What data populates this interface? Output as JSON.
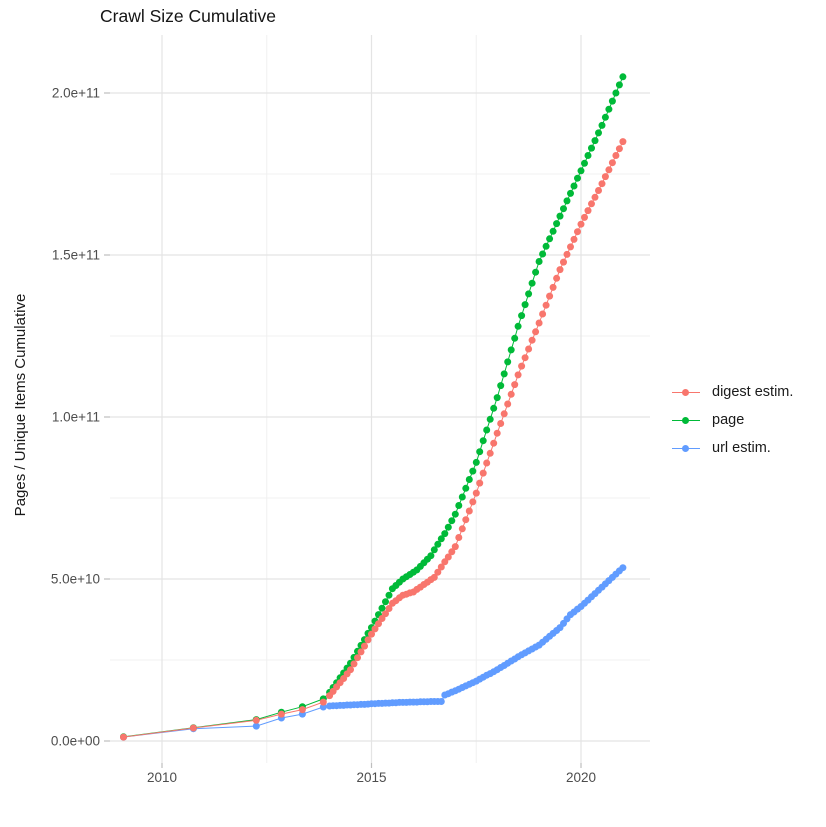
{
  "chart_data": {
    "type": "scatter",
    "title": "Crawl Size Cumulative",
    "xlabel": "",
    "ylabel": "Pages / Unique Items Cumulative",
    "value_unit": "1e10",
    "xlim": [
      2008.76,
      2021.65
    ],
    "ylim_e10": [
      -0.68,
      21.79
    ],
    "grid": "on",
    "x_ticks": [
      {
        "label": "2010",
        "value": 2010
      },
      {
        "label": "2015",
        "value": 2015
      },
      {
        "label": "2020",
        "value": 2020
      }
    ],
    "x_minor_ticks": [
      2012.5,
      2017.5
    ],
    "y_ticks": [
      {
        "label": "0.0e+00",
        "value_e10": 0
      },
      {
        "label": "5.0e+10",
        "value_e10": 5
      },
      {
        "label": "1.0e+11",
        "value_e10": 10
      },
      {
        "label": "1.5e+11",
        "value_e10": 15
      },
      {
        "label": "2.0e+11",
        "value_e10": 20
      }
    ],
    "y_minor_ticks_e10": [
      2.5,
      7.5,
      12.5,
      17.5
    ],
    "legend": {
      "position": "right",
      "entries": [
        {
          "label": "digest estim.",
          "color": "#F8766D"
        },
        {
          "label": "page",
          "color": "#00BA38"
        },
        {
          "label": "url estim.",
          "color": "#619CFF"
        }
      ]
    },
    "series": [
      {
        "name": "digest estim.",
        "color": "#F8766D",
        "points": [
          [
            2009.08,
            0.12
          ],
          [
            2010.75,
            0.4
          ],
          [
            2012.25,
            0.64
          ],
          [
            2012.85,
            0.83
          ],
          [
            2013.35,
            0.97
          ],
          [
            2013.85,
            1.2
          ],
          [
            2014.0,
            1.4
          ],
          [
            2014.083,
            1.53
          ],
          [
            2014.167,
            1.67
          ],
          [
            2014.25,
            1.8
          ],
          [
            2014.333,
            1.93
          ],
          [
            2014.417,
            2.07
          ],
          [
            2014.5,
            2.2
          ],
          [
            2014.583,
            2.38
          ],
          [
            2014.667,
            2.57
          ],
          [
            2014.75,
            2.75
          ],
          [
            2014.833,
            2.93
          ],
          [
            2014.917,
            3.12
          ],
          [
            2015.0,
            3.3
          ],
          [
            2015.083,
            3.46
          ],
          [
            2015.167,
            3.62
          ],
          [
            2015.25,
            3.78
          ],
          [
            2015.333,
            3.93
          ],
          [
            2015.417,
            4.09
          ],
          [
            2015.5,
            4.25
          ],
          [
            2015.583,
            4.33
          ],
          [
            2015.667,
            4.42
          ],
          [
            2015.75,
            4.5
          ],
          [
            2015.833,
            4.53
          ],
          [
            2015.917,
            4.57
          ],
          [
            2016.0,
            4.6
          ],
          [
            2016.083,
            4.68
          ],
          [
            2016.167,
            4.75
          ],
          [
            2016.25,
            4.83
          ],
          [
            2016.333,
            4.9
          ],
          [
            2016.417,
            4.98
          ],
          [
            2016.5,
            5.05
          ],
          [
            2016.583,
            5.21
          ],
          [
            2016.667,
            5.37
          ],
          [
            2016.75,
            5.53
          ],
          [
            2016.833,
            5.68
          ],
          [
            2016.917,
            5.84
          ],
          [
            2017.0,
            6.0
          ],
          [
            2017.083,
            6.28
          ],
          [
            2017.167,
            6.55
          ],
          [
            2017.25,
            6.83
          ],
          [
            2017.333,
            7.1
          ],
          [
            2017.417,
            7.38
          ],
          [
            2017.5,
            7.65
          ],
          [
            2017.583,
            7.96
          ],
          [
            2017.667,
            8.27
          ],
          [
            2017.75,
            8.58
          ],
          [
            2017.833,
            8.88
          ],
          [
            2017.917,
            9.19
          ],
          [
            2018.0,
            9.5
          ],
          [
            2018.083,
            9.8
          ],
          [
            2018.167,
            10.1
          ],
          [
            2018.25,
            10.4
          ],
          [
            2018.333,
            10.7
          ],
          [
            2018.417,
            11.0
          ],
          [
            2018.5,
            11.3
          ],
          [
            2018.583,
            11.57
          ],
          [
            2018.667,
            11.83
          ],
          [
            2018.75,
            12.1
          ],
          [
            2018.833,
            12.37
          ],
          [
            2018.917,
            12.63
          ],
          [
            2019.0,
            12.9
          ],
          [
            2019.083,
            13.18
          ],
          [
            2019.167,
            13.45
          ],
          [
            2019.25,
            13.73
          ],
          [
            2019.333,
            14.0
          ],
          [
            2019.417,
            14.28
          ],
          [
            2019.5,
            14.55
          ],
          [
            2019.583,
            14.78
          ],
          [
            2019.667,
            15.02
          ],
          [
            2019.75,
            15.25
          ],
          [
            2019.833,
            15.48
          ],
          [
            2019.917,
            15.72
          ],
          [
            2020.0,
            15.95
          ],
          [
            2020.083,
            16.16
          ],
          [
            2020.167,
            16.37
          ],
          [
            2020.25,
            16.58
          ],
          [
            2020.333,
            16.78
          ],
          [
            2020.417,
            16.99
          ],
          [
            2020.5,
            17.2
          ],
          [
            2020.583,
            17.42
          ],
          [
            2020.667,
            17.63
          ],
          [
            2020.75,
            17.85
          ],
          [
            2020.833,
            18.07
          ],
          [
            2020.917,
            18.28
          ],
          [
            2021.0,
            18.5
          ]
        ]
      },
      {
        "name": "page",
        "color": "#00BA38",
        "points": [
          [
            2009.08,
            0.13
          ],
          [
            2010.75,
            0.41
          ],
          [
            2012.25,
            0.66
          ],
          [
            2012.85,
            0.89
          ],
          [
            2013.35,
            1.06
          ],
          [
            2013.85,
            1.3
          ],
          [
            2014.0,
            1.5
          ],
          [
            2014.083,
            1.65
          ],
          [
            2014.167,
            1.8
          ],
          [
            2014.25,
            1.95
          ],
          [
            2014.333,
            2.1
          ],
          [
            2014.417,
            2.25
          ],
          [
            2014.5,
            2.4
          ],
          [
            2014.583,
            2.58
          ],
          [
            2014.667,
            2.77
          ],
          [
            2014.75,
            2.95
          ],
          [
            2014.833,
            3.13
          ],
          [
            2014.917,
            3.32
          ],
          [
            2015.0,
            3.5
          ],
          [
            2015.083,
            3.7
          ],
          [
            2015.167,
            3.9
          ],
          [
            2015.25,
            4.1
          ],
          [
            2015.333,
            4.3
          ],
          [
            2015.417,
            4.5
          ],
          [
            2015.5,
            4.7
          ],
          [
            2015.583,
            4.8
          ],
          [
            2015.667,
            4.9
          ],
          [
            2015.75,
            5.0
          ],
          [
            2015.833,
            5.07
          ],
          [
            2015.917,
            5.14
          ],
          [
            2016.0,
            5.21
          ],
          [
            2016.083,
            5.28
          ],
          [
            2016.167,
            5.39
          ],
          [
            2016.25,
            5.5
          ],
          [
            2016.333,
            5.61
          ],
          [
            2016.417,
            5.72
          ],
          [
            2016.5,
            5.9
          ],
          [
            2016.583,
            6.07
          ],
          [
            2016.667,
            6.24
          ],
          [
            2016.75,
            6.4
          ],
          [
            2016.833,
            6.6
          ],
          [
            2016.917,
            6.8
          ],
          [
            2017.0,
            7.0
          ],
          [
            2017.083,
            7.27
          ],
          [
            2017.167,
            7.53
          ],
          [
            2017.25,
            7.8
          ],
          [
            2017.333,
            8.07
          ],
          [
            2017.417,
            8.33
          ],
          [
            2017.5,
            8.6
          ],
          [
            2017.583,
            8.93
          ],
          [
            2017.667,
            9.27
          ],
          [
            2017.75,
            9.6
          ],
          [
            2017.833,
            9.93
          ],
          [
            2017.917,
            10.27
          ],
          [
            2018.0,
            10.6
          ],
          [
            2018.083,
            10.97
          ],
          [
            2018.167,
            11.33
          ],
          [
            2018.25,
            11.7
          ],
          [
            2018.333,
            12.07
          ],
          [
            2018.417,
            12.43
          ],
          [
            2018.5,
            12.8
          ],
          [
            2018.583,
            13.13
          ],
          [
            2018.667,
            13.47
          ],
          [
            2018.75,
            13.8
          ],
          [
            2018.833,
            14.13
          ],
          [
            2018.917,
            14.47
          ],
          [
            2019.0,
            14.8
          ],
          [
            2019.083,
            15.03
          ],
          [
            2019.167,
            15.27
          ],
          [
            2019.25,
            15.5
          ],
          [
            2019.333,
            15.73
          ],
          [
            2019.417,
            15.97
          ],
          [
            2019.5,
            16.2
          ],
          [
            2019.583,
            16.43
          ],
          [
            2019.667,
            16.67
          ],
          [
            2019.75,
            16.9
          ],
          [
            2019.833,
            17.13
          ],
          [
            2019.917,
            17.37
          ],
          [
            2020.0,
            17.6
          ],
          [
            2020.083,
            17.83
          ],
          [
            2020.167,
            18.07
          ],
          [
            2020.25,
            18.3
          ],
          [
            2020.333,
            18.53
          ],
          [
            2020.417,
            18.77
          ],
          [
            2020.5,
            19.0
          ],
          [
            2020.583,
            19.25
          ],
          [
            2020.667,
            19.5
          ],
          [
            2020.75,
            19.75
          ],
          [
            2020.833,
            20.0
          ],
          [
            2020.917,
            20.25
          ],
          [
            2021.0,
            20.5
          ]
        ]
      },
      {
        "name": "url estim.",
        "color": "#619CFF",
        "points": [
          [
            2009.08,
            0.12
          ],
          [
            2010.75,
            0.38
          ],
          [
            2012.25,
            0.46
          ],
          [
            2012.85,
            0.71
          ],
          [
            2013.35,
            0.83
          ],
          [
            2013.85,
            1.05
          ],
          [
            2014.0,
            1.08
          ],
          [
            2014.083,
            1.09
          ],
          [
            2014.167,
            1.09
          ],
          [
            2014.25,
            1.1
          ],
          [
            2014.333,
            1.1
          ],
          [
            2014.417,
            1.11
          ],
          [
            2014.5,
            1.11
          ],
          [
            2014.583,
            1.12
          ],
          [
            2014.667,
            1.12
          ],
          [
            2014.75,
            1.13
          ],
          [
            2014.833,
            1.13
          ],
          [
            2014.917,
            1.14
          ],
          [
            2015.0,
            1.15
          ],
          [
            2015.083,
            1.15
          ],
          [
            2015.167,
            1.16
          ],
          [
            2015.25,
            1.16
          ],
          [
            2015.333,
            1.17
          ],
          [
            2015.417,
            1.17
          ],
          [
            2015.5,
            1.18
          ],
          [
            2015.583,
            1.18
          ],
          [
            2015.667,
            1.19
          ],
          [
            2015.75,
            1.19
          ],
          [
            2015.833,
            1.19
          ],
          [
            2015.917,
            1.2
          ],
          [
            2016.0,
            1.2
          ],
          [
            2016.083,
            1.2
          ],
          [
            2016.167,
            1.21
          ],
          [
            2016.25,
            1.21
          ],
          [
            2016.333,
            1.21
          ],
          [
            2016.417,
            1.22
          ],
          [
            2016.5,
            1.22
          ],
          [
            2016.583,
            1.22
          ],
          [
            2016.667,
            1.22
          ],
          [
            2016.75,
            1.42
          ],
          [
            2016.833,
            1.46
          ],
          [
            2016.917,
            1.51
          ],
          [
            2017.0,
            1.55
          ],
          [
            2017.083,
            1.6
          ],
          [
            2017.167,
            1.65
          ],
          [
            2017.25,
            1.7
          ],
          [
            2017.333,
            1.75
          ],
          [
            2017.417,
            1.8
          ],
          [
            2017.5,
            1.85
          ],
          [
            2017.583,
            1.91
          ],
          [
            2017.667,
            1.97
          ],
          [
            2017.75,
            2.03
          ],
          [
            2017.833,
            2.08
          ],
          [
            2017.917,
            2.14
          ],
          [
            2018.0,
            2.2
          ],
          [
            2018.083,
            2.27
          ],
          [
            2018.167,
            2.33
          ],
          [
            2018.25,
            2.4
          ],
          [
            2018.333,
            2.47
          ],
          [
            2018.417,
            2.53
          ],
          [
            2018.5,
            2.6
          ],
          [
            2018.583,
            2.66
          ],
          [
            2018.667,
            2.72
          ],
          [
            2018.75,
            2.78
          ],
          [
            2018.833,
            2.84
          ],
          [
            2018.917,
            2.9
          ],
          [
            2019.0,
            2.96
          ],
          [
            2019.083,
            3.05
          ],
          [
            2019.167,
            3.14
          ],
          [
            2019.25,
            3.23
          ],
          [
            2019.333,
            3.32
          ],
          [
            2019.417,
            3.41
          ],
          [
            2019.5,
            3.5
          ],
          [
            2019.583,
            3.63
          ],
          [
            2019.667,
            3.77
          ],
          [
            2019.75,
            3.9
          ],
          [
            2019.833,
            3.98
          ],
          [
            2019.917,
            4.07
          ],
          [
            2020.0,
            4.15
          ],
          [
            2020.083,
            4.25
          ],
          [
            2020.167,
            4.35
          ],
          [
            2020.25,
            4.45
          ],
          [
            2020.333,
            4.55
          ],
          [
            2020.417,
            4.65
          ],
          [
            2020.5,
            4.75
          ],
          [
            2020.583,
            4.85
          ],
          [
            2020.667,
            4.95
          ],
          [
            2020.75,
            5.05
          ],
          [
            2020.833,
            5.15
          ],
          [
            2020.917,
            5.25
          ],
          [
            2021.0,
            5.35
          ]
        ]
      }
    ],
    "style": {
      "grid_major_color": "#E4E4E4",
      "grid_minor_color": "#F0F0F0",
      "tick_mark_color": "#BEBEBE",
      "tick_label_color": "#4D4D4D",
      "background": "#FFFFFF"
    }
  }
}
